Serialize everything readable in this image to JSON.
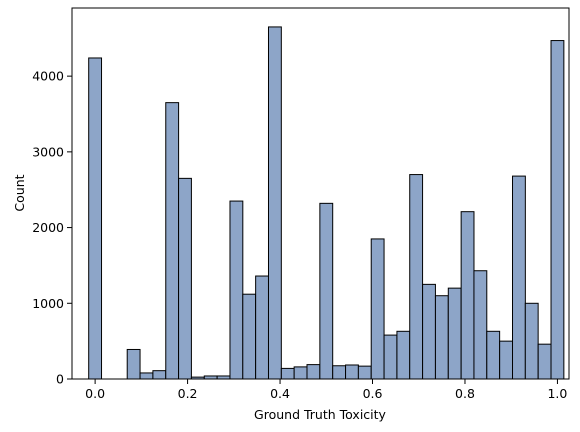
{
  "chart_data": {
    "type": "bar",
    "title": "",
    "xlabel": "Ground Truth Toxicity",
    "ylabel": "Count",
    "xlim": [
      -0.05,
      1.025
    ],
    "ylim": [
      0,
      4900
    ],
    "grid": false,
    "bar_color": "#8da5c8",
    "edge_color": "#000000",
    "bin_width": 0.02778,
    "xticks": [
      0.0,
      0.2,
      0.4,
      0.6,
      0.8,
      1.0
    ],
    "xtick_labels": [
      "0.0",
      "0.2",
      "0.4",
      "0.6",
      "0.8",
      "1.0"
    ],
    "yticks": [
      0,
      1000,
      2000,
      3000,
      4000
    ],
    "ytick_labels": [
      "0",
      "1000",
      "2000",
      "3000",
      "4000"
    ],
    "bins": [
      {
        "x": 0.0,
        "value": 4240
      },
      {
        "x": 0.0278,
        "value": 0
      },
      {
        "x": 0.0556,
        "value": 0
      },
      {
        "x": 0.0833,
        "value": 390
      },
      {
        "x": 0.1111,
        "value": 80
      },
      {
        "x": 0.1389,
        "value": 110
      },
      {
        "x": 0.1667,
        "value": 3650
      },
      {
        "x": 0.1944,
        "value": 2650
      },
      {
        "x": 0.2222,
        "value": 25
      },
      {
        "x": 0.25,
        "value": 40
      },
      {
        "x": 0.2778,
        "value": 40
      },
      {
        "x": 0.3056,
        "value": 2350
      },
      {
        "x": 0.3333,
        "value": 1120
      },
      {
        "x": 0.3611,
        "value": 1360
      },
      {
        "x": 0.3889,
        "value": 4650
      },
      {
        "x": 0.4167,
        "value": 140
      },
      {
        "x": 0.4444,
        "value": 160
      },
      {
        "x": 0.4722,
        "value": 190
      },
      {
        "x": 0.5,
        "value": 2320
      },
      {
        "x": 0.5278,
        "value": 175
      },
      {
        "x": 0.5556,
        "value": 185
      },
      {
        "x": 0.5833,
        "value": 170
      },
      {
        "x": 0.6111,
        "value": 1850
      },
      {
        "x": 0.6389,
        "value": 580
      },
      {
        "x": 0.6667,
        "value": 630
      },
      {
        "x": 0.6944,
        "value": 2700
      },
      {
        "x": 0.7222,
        "value": 1250
      },
      {
        "x": 0.75,
        "value": 1100
      },
      {
        "x": 0.7778,
        "value": 1200
      },
      {
        "x": 0.8056,
        "value": 2210
      },
      {
        "x": 0.8333,
        "value": 1430
      },
      {
        "x": 0.8611,
        "value": 630
      },
      {
        "x": 0.8889,
        "value": 500
      },
      {
        "x": 0.9167,
        "value": 2680
      },
      {
        "x": 0.9444,
        "value": 1000
      },
      {
        "x": 0.9722,
        "value": 460
      },
      {
        "x": 1.0,
        "value": 4470
      }
    ]
  }
}
